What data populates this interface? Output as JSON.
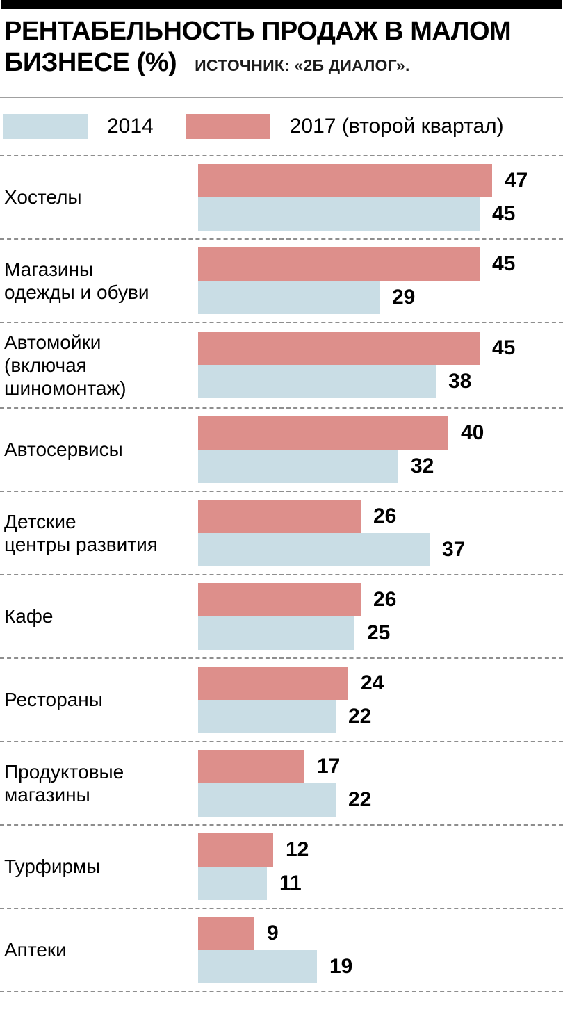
{
  "header": {
    "title_line1": "РЕНТАБЕЛЬНОСТЬ ПРОДАЖ В МАЛОМ",
    "title_line2": "БИЗНЕСЕ (%)",
    "source": "ИСТОЧНИК: «2Б ДИАЛОГ»."
  },
  "legend": {
    "items": [
      {
        "label": "2014",
        "color": "#c9dde5"
      },
      {
        "label": "2017 (второй квартал)",
        "color": "#dd8f8b"
      }
    ]
  },
  "chart_data": {
    "type": "bar",
    "orientation": "horizontal",
    "title": "РЕНТАБЕЛЬНОСТЬ ПРОДАЖ В МАЛОМ БИЗНЕСЕ (%)",
    "source": "ИСТОЧНИК: «2Б ДИАЛОГ».",
    "xlim": [
      0,
      47
    ],
    "grid": false,
    "legend_position": "top",
    "categories": [
      "Хостелы",
      "Магазины одежды и обуви",
      "Автомойки (включая шиномонтаж)",
      "Автосервисы",
      "Детские центры развития",
      "Кафе",
      "Рестораны",
      "Продуктовые магазины",
      "Турфирмы",
      "Аптеки"
    ],
    "category_display": [
      "Хостелы",
      "Магазины\nодежды и обуви",
      "Автомойки\n(включая\nшиномонтаж)",
      "Автосервисы",
      "Детские\nцентры развития",
      "Кафе",
      "Рестораны",
      "Продуктовые\nмагазины",
      "Турфирмы",
      "Аптеки"
    ],
    "series": [
      {
        "name": "2017 (второй квартал)",
        "color": "#dd8f8b",
        "values": [
          47,
          45,
          45,
          40,
          26,
          26,
          24,
          17,
          12,
          9
        ]
      },
      {
        "name": "2014",
        "color": "#c9dde5",
        "values": [
          45,
          29,
          38,
          32,
          37,
          25,
          22,
          22,
          11,
          19
        ]
      }
    ]
  }
}
